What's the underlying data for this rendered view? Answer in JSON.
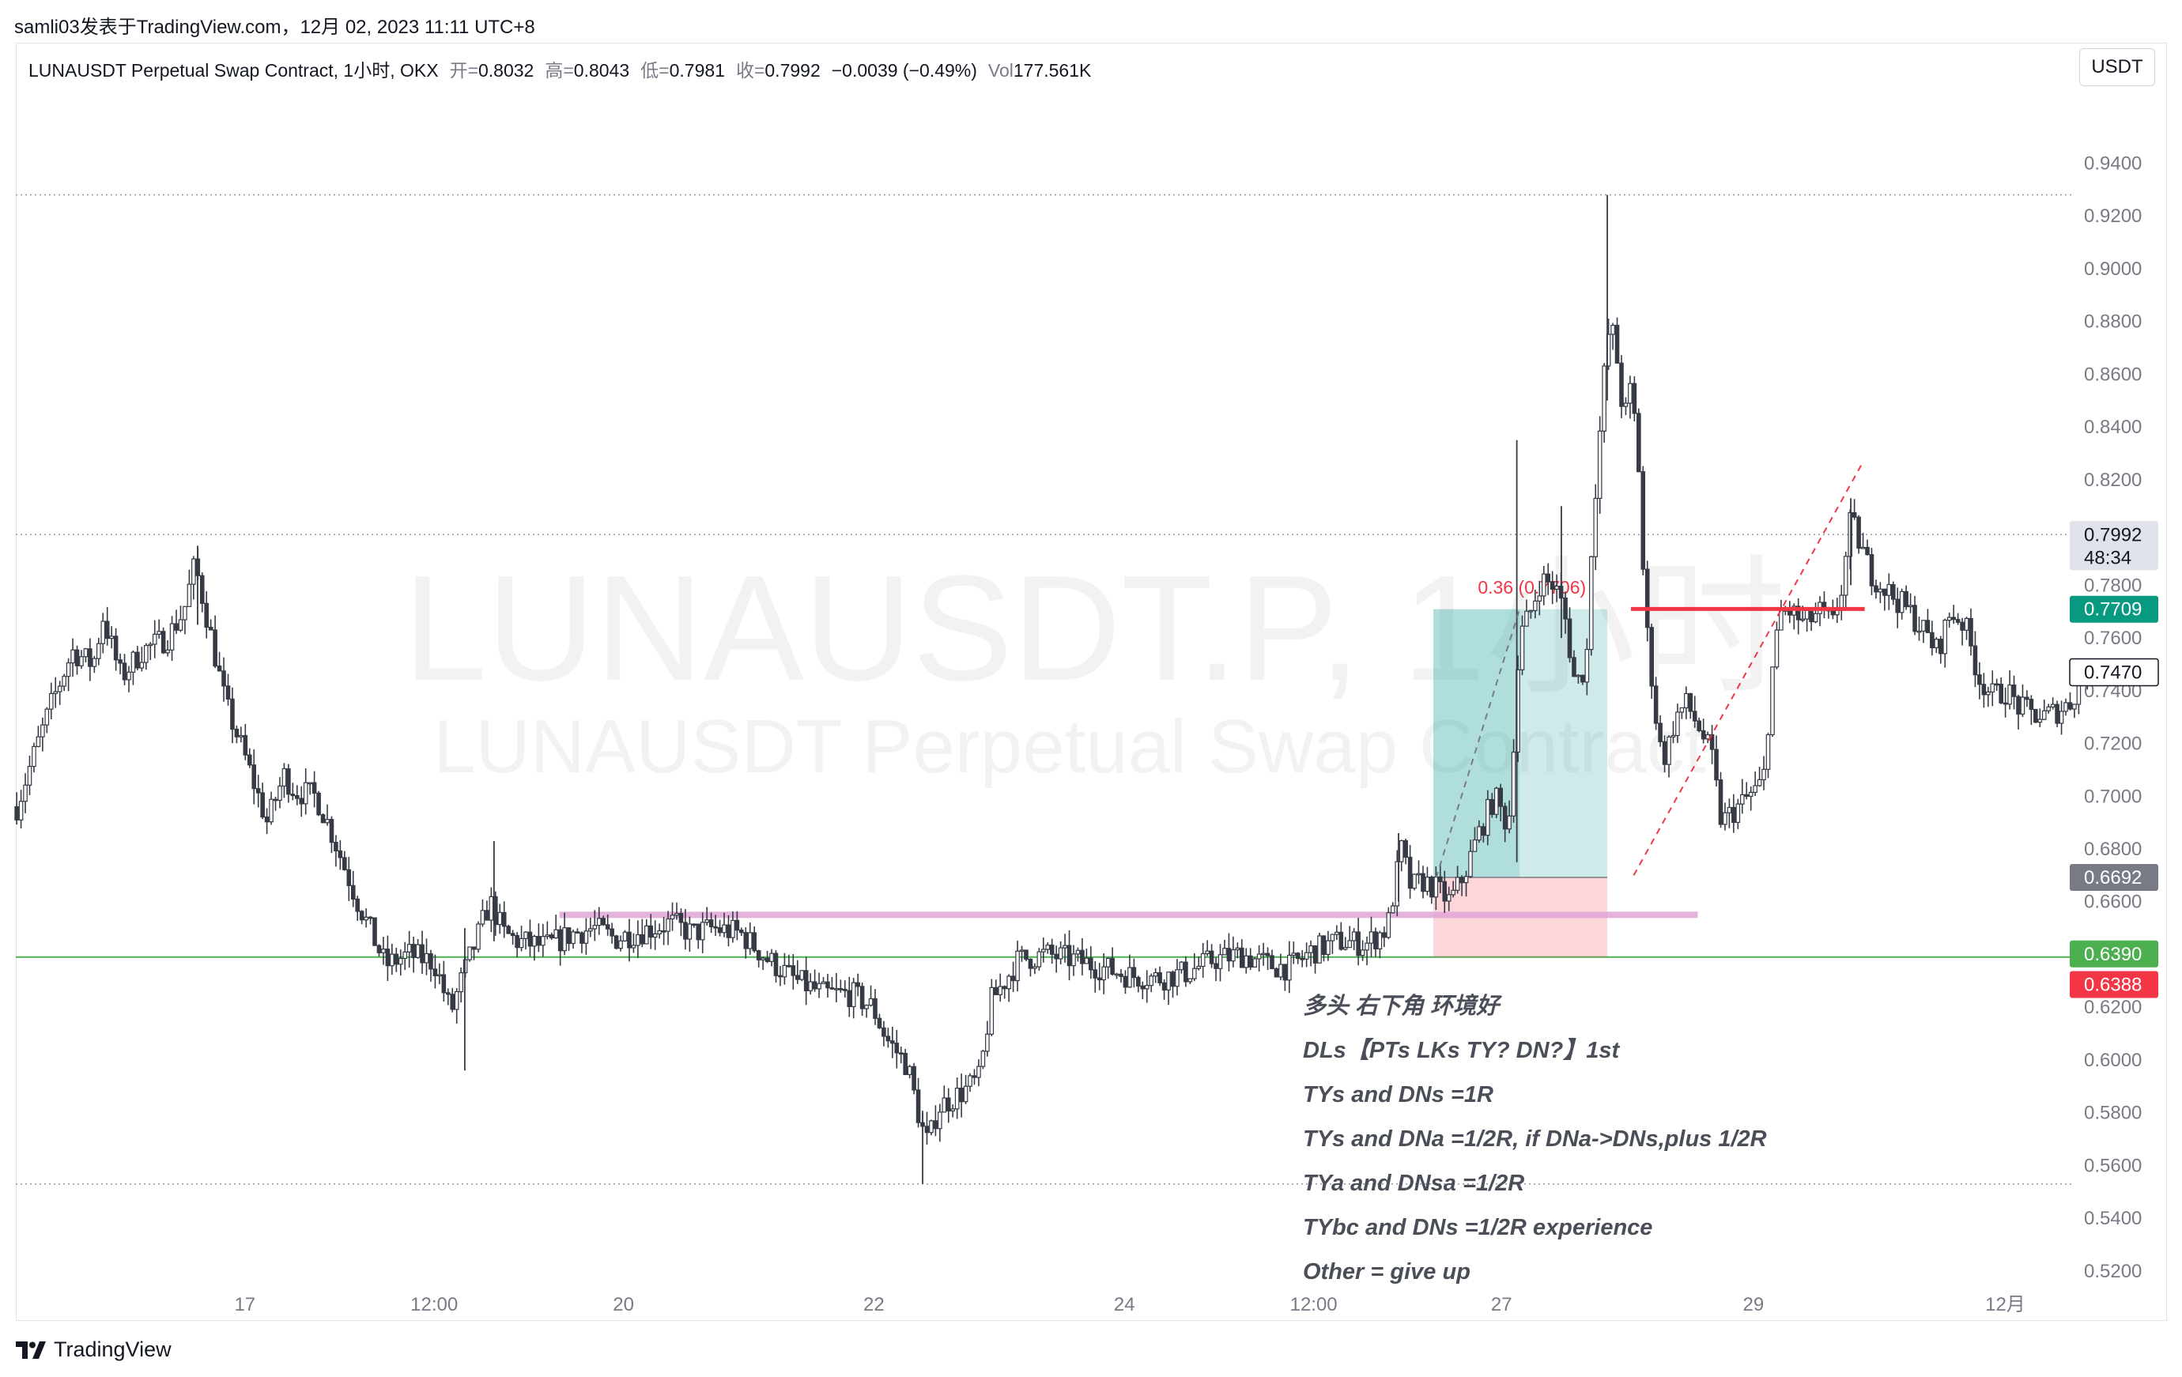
{
  "caption": "samli03发表于TradingView.com，12月 02, 2023 11:11 UTC+8",
  "legend": {
    "symbol_desc": "LUNAUSDT Perpetual Swap Contract, 1小时, OKX",
    "open_label": "开=",
    "open": "0.8032",
    "high_label": "高=",
    "high": "0.8043",
    "low_label": "低=",
    "low": "0.7981",
    "close_label": "收=",
    "close": "0.7992",
    "change": "−0.0039 (−0.49%)",
    "vol_label": "Vol",
    "vol": "177.561K"
  },
  "currency_button": "USDT",
  "watermark": {
    "big": "LUNAUSDT.P, 1小时",
    "small": "LUNAUSDT Perpetual Swap Contract"
  },
  "footer_logo_text": "TradingView",
  "notes": [
    "多头 右下角 环境好",
    "DLs【PTs LKs TY? DN?】1st",
    "TYs and DNs =1R",
    "TYs and DNa =1/2R, if DNa->DNs,plus 1/2R",
    "TYa and DNsa =1/2R",
    "TYbc and DNs =1/2R experience",
    "Other = give up"
  ],
  "fib_label": "0.36 (0.7706)",
  "colors": {
    "up": "#ffffff",
    "down": "#363a45",
    "wick": "#363a45",
    "green_line": "#4caf50",
    "pink_zone": "#e1a5d6",
    "red_line": "#f23645",
    "tp_box": "#26a69a",
    "sl_box": "#f7525f"
  },
  "chart_data": {
    "type": "candlestick",
    "title": "LUNAUSDT.P, 1小时",
    "ylim": [
      0.5,
      0.96
    ],
    "yticks": [
      "0.9400",
      "0.9200",
      "0.9000",
      "0.8800",
      "0.8600",
      "0.8400",
      "0.8200",
      "0.7800",
      "0.7600",
      "0.7400",
      "0.7200",
      "0.7000",
      "0.6800",
      "0.6600",
      "0.6200",
      "0.6000",
      "0.5800",
      "0.5600",
      "0.5400",
      "0.5200"
    ],
    "xticks": [
      "17",
      "12:00",
      "20",
      "22",
      "24",
      "12:00",
      "27",
      "29",
      "12月"
    ],
    "price_labels": [
      {
        "text": "0.7992",
        "sub": "48:34",
        "price": 0.7992,
        "style": "current"
      },
      {
        "text": "0.7709",
        "price": 0.7709,
        "style": "green"
      },
      {
        "text": "0.7470",
        "price": 0.747,
        "style": "outline"
      },
      {
        "text": "0.6692",
        "price": 0.6692,
        "style": "gray"
      },
      {
        "text": "0.6390",
        "price": 0.639,
        "style": "green"
      },
      {
        "text": "0.6388",
        "price": 0.6388,
        "style": "red"
      }
    ],
    "horizontal_lines": [
      {
        "price": 0.928,
        "style": "dotted"
      },
      {
        "price": 0.7992,
        "style": "dotted"
      },
      {
        "price": 0.639,
        "style": "solid-green"
      },
      {
        "price": 0.553,
        "style": "dotted"
      }
    ],
    "path": [
      [
        0,
        0.696
      ],
      [
        10,
        0.712
      ],
      [
        25,
        0.735
      ],
      [
        40,
        0.755
      ],
      [
        55,
        0.75
      ],
      [
        62,
        0.768
      ],
      [
        75,
        0.745
      ],
      [
        90,
        0.755
      ],
      [
        108,
        0.76
      ],
      [
        120,
        0.77
      ],
      [
        128,
        0.788
      ],
      [
        135,
        0.772
      ],
      [
        150,
        0.735
      ],
      [
        162,
        0.718
      ],
      [
        180,
        0.69
      ],
      [
        192,
        0.708
      ],
      [
        200,
        0.702
      ],
      [
        215,
        0.7
      ],
      [
        225,
        0.688
      ],
      [
        245,
        0.66
      ],
      [
        265,
        0.636
      ],
      [
        282,
        0.64
      ],
      [
        300,
        0.637
      ],
      [
        312,
        0.618
      ],
      [
        318,
        0.628
      ],
      [
        330,
        0.645
      ],
      [
        340,
        0.66
      ],
      [
        350,
        0.648
      ],
      [
        360,
        0.645
      ],
      [
        380,
        0.643
      ],
      [
        400,
        0.648
      ],
      [
        415,
        0.65
      ],
      [
        430,
        0.646
      ],
      [
        450,
        0.649
      ],
      [
        470,
        0.652
      ],
      [
        485,
        0.648
      ],
      [
        500,
        0.65
      ],
      [
        520,
        0.648
      ],
      [
        540,
        0.638
      ],
      [
        560,
        0.63
      ],
      [
        580,
        0.625
      ],
      [
        600,
        0.625
      ],
      [
        615,
        0.62
      ],
      [
        625,
        0.608
      ],
      [
        640,
        0.598
      ],
      [
        650,
        0.575
      ],
      [
        655,
        0.568
      ],
      [
        662,
        0.582
      ],
      [
        680,
        0.588
      ],
      [
        692,
        0.593
      ],
      [
        700,
        0.622
      ],
      [
        710,
        0.63
      ],
      [
        720,
        0.638
      ],
      [
        740,
        0.64
      ],
      [
        760,
        0.638
      ],
      [
        780,
        0.635
      ],
      [
        800,
        0.632
      ],
      [
        820,
        0.631
      ],
      [
        840,
        0.633
      ],
      [
        860,
        0.638
      ],
      [
        880,
        0.64
      ],
      [
        900,
        0.636
      ],
      [
        915,
        0.635
      ],
      [
        930,
        0.641
      ],
      [
        950,
        0.645
      ],
      [
        970,
        0.644
      ],
      [
        985,
        0.65
      ],
      [
        995,
        0.68
      ],
      [
        1002,
        0.665
      ],
      [
        1010,
        0.668
      ],
      [
        1020,
        0.665
      ],
      [
        1030,
        0.66
      ],
      [
        1040,
        0.67
      ],
      [
        1050,
        0.685
      ],
      [
        1062,
        0.7
      ],
      [
        1072,
        0.688
      ],
      [
        1080,
        0.76
      ],
      [
        1088,
        0.77
      ],
      [
        1095,
        0.782
      ],
      [
        1105,
        0.78
      ],
      [
        1112,
        0.77
      ],
      [
        1120,
        0.742
      ],
      [
        1128,
        0.75
      ],
      [
        1132,
        0.8
      ],
      [
        1138,
        0.84
      ],
      [
        1143,
        0.875
      ],
      [
        1148,
        0.875
      ],
      [
        1155,
        0.842
      ],
      [
        1160,
        0.855
      ],
      [
        1165,
        0.832
      ],
      [
        1170,
        0.77
      ],
      [
        1175,
        0.745
      ],
      [
        1180,
        0.72
      ],
      [
        1185,
        0.715
      ],
      [
        1192,
        0.73
      ],
      [
        1200,
        0.735
      ],
      [
        1210,
        0.725
      ],
      [
        1218,
        0.715
      ],
      [
        1225,
        0.69
      ],
      [
        1235,
        0.695
      ],
      [
        1245,
        0.7
      ],
      [
        1255,
        0.705
      ],
      [
        1262,
        0.75
      ],
      [
        1268,
        0.77
      ],
      [
        1275,
        0.77
      ],
      [
        1285,
        0.765
      ],
      [
        1295,
        0.77
      ],
      [
        1305,
        0.765
      ],
      [
        1312,
        0.78
      ],
      [
        1318,
        0.805
      ],
      [
        1325,
        0.795
      ],
      [
        1332,
        0.785
      ],
      [
        1340,
        0.78
      ],
      [
        1350,
        0.775
      ],
      [
        1360,
        0.77
      ],
      [
        1370,
        0.763
      ],
      [
        1380,
        0.755
      ],
      [
        1390,
        0.77
      ],
      [
        1400,
        0.765
      ],
      [
        1410,
        0.745
      ],
      [
        1420,
        0.738
      ],
      [
        1430,
        0.74
      ],
      [
        1440,
        0.733
      ],
      [
        1455,
        0.73
      ],
      [
        1465,
        0.732
      ],
      [
        1475,
        0.735
      ],
      [
        1482,
        0.742
      ],
      [
        1488,
        0.747
      ]
    ],
    "spikes": [
      {
        "x": 1143,
        "high": 0.928,
        "low": 0.85
      },
      {
        "x": 1078,
        "high": 0.835,
        "low": 0.675
      },
      {
        "x": 1110,
        "high": 0.81,
        "low": 0.76
      },
      {
        "x": 1318,
        "high": 0.813,
        "low": 0.78
      },
      {
        "x": 651,
        "high": 0.58,
        "low": 0.553
      },
      {
        "x": 322,
        "high": 0.65,
        "low": 0.596
      },
      {
        "x": 130,
        "high": 0.795,
        "low": 0.765
      },
      {
        "x": 993,
        "high": 0.686,
        "low": 0.66
      },
      {
        "x": 343,
        "high": 0.683,
        "low": 0.645
      }
    ],
    "zones": {
      "support_line": {
        "price": 0.655,
        "x1": 390,
        "x2": 1208
      },
      "long_position": {
        "x1": 1018,
        "x2": 1143,
        "tp": 0.7709,
        "entry": 0.6692,
        "stop": 0.639
      },
      "resistance_line": {
        "price": 0.771,
        "x1": 1160,
        "x2": 1328
      },
      "dashed_lines": [
        {
          "x1": 1020,
          "y1": 0.669,
          "x2": 1080,
          "y2": 0.771,
          "color": "#787b86"
        },
        {
          "x1": 1162,
          "y1": 0.67,
          "x2": 1326,
          "y2": 0.826,
          "color": "#f23645"
        }
      ]
    }
  }
}
